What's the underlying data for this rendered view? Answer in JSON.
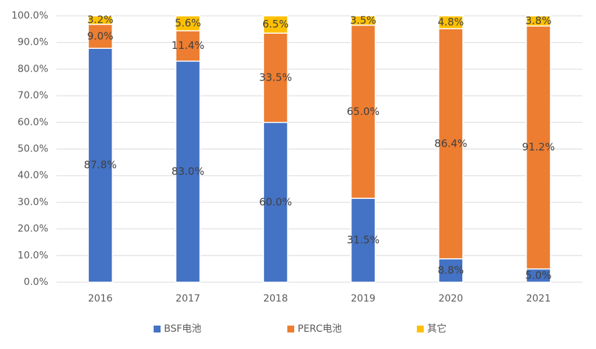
{
  "chart_data": {
    "type": "stacked_bar",
    "categories": [
      "2016",
      "2017",
      "2018",
      "2019",
      "2020",
      "2021"
    ],
    "series": [
      {
        "name": "BSF电池",
        "color": "#4472c4",
        "values": [
          87.8,
          83.0,
          60.0,
          31.5,
          8.8,
          5.0
        ],
        "value_labels": [
          "87.8%",
          "83.0%",
          "60.0%",
          "31.5%",
          "8.8%",
          "5.0%"
        ]
      },
      {
        "name": "PERC电池",
        "color": "#ed7d31",
        "values": [
          9.0,
          11.4,
          33.5,
          65.0,
          86.4,
          91.2
        ],
        "value_labels": [
          "9.0%",
          "11.4%",
          "33.5%",
          "65.0%",
          "86.4%",
          "91.2%"
        ]
      },
      {
        "name": "其它",
        "color": "#ffc000",
        "values": [
          3.2,
          5.6,
          6.5,
          3.5,
          4.8,
          3.8
        ],
        "value_labels": [
          "3.2%",
          "5.6%",
          "6.5%",
          "3.5%",
          "4.8%",
          "3.8%"
        ]
      }
    ],
    "ylim": [
      0,
      100
    ],
    "yticks": [
      {
        "value": 0,
        "label": "0.0%"
      },
      {
        "value": 10,
        "label": "10.0%"
      },
      {
        "value": 20,
        "label": "20.0%"
      },
      {
        "value": 30,
        "label": "30.0%"
      },
      {
        "value": 40,
        "label": "40.0%"
      },
      {
        "value": 50,
        "label": "50.0%"
      },
      {
        "value": 60,
        "label": "60.0%"
      },
      {
        "value": 70,
        "label": "70.0%"
      },
      {
        "value": 80,
        "label": "80.0%"
      },
      {
        "value": 90,
        "label": "90.0%"
      },
      {
        "value": 100,
        "label": "100.0%"
      }
    ],
    "grid": true,
    "legend": "bottom"
  }
}
